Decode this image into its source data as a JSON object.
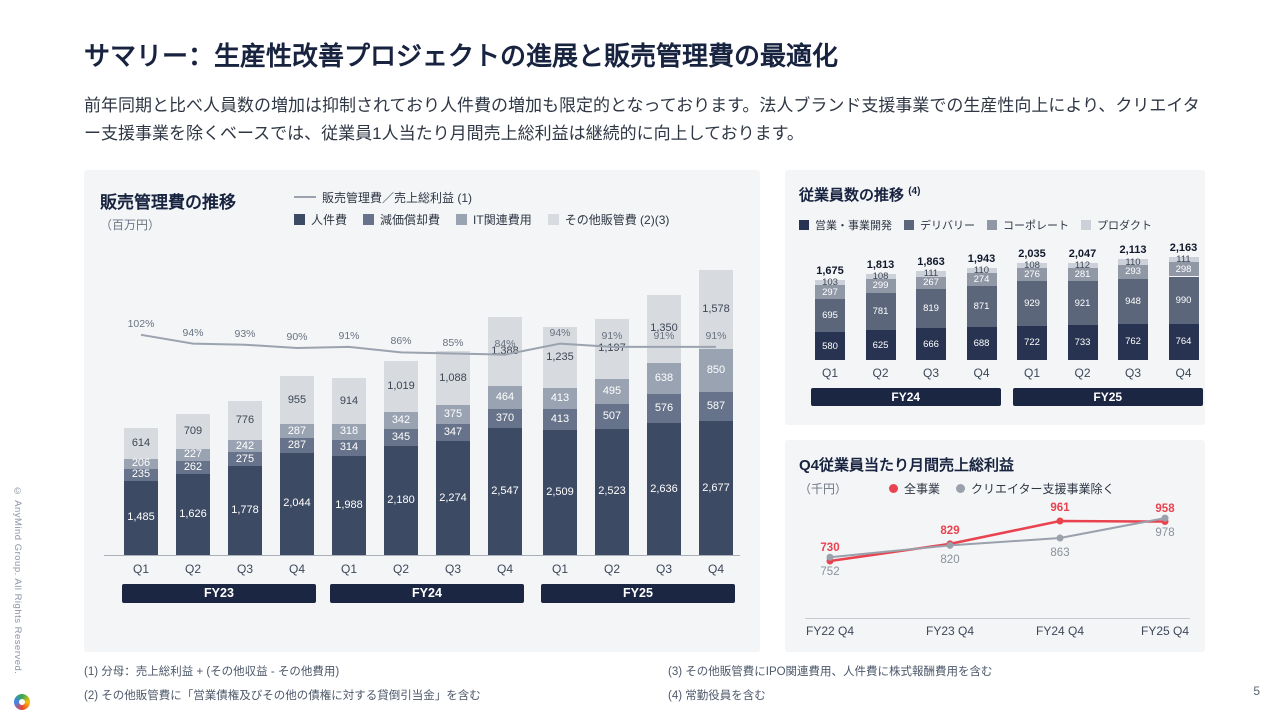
{
  "page": {
    "title": "サマリー：生産性改善プロジェクトの進展と販売管理費の最適化",
    "body": "前年同期と比べ人員数の増加は抑制されており人件費の増加も限定的となっております。法人ブランド支援事業での生産性向上により、クリエイター支援事業を除くベースでは、従業員1人当たり月間売上総利益は継続的に向上しております。",
    "copyright": "© AnyMind Group. All Rights Reserved.",
    "page_number": "5"
  },
  "footnotes": [
    "(1) 分母：売上総利益 + (その他収益 - その他費用)",
    "(2) その他販管費に「営業債権及びその他の債権に対する貸倒引当金」を含む",
    "(3) その他販管費にIPO関連費用、人件費に株式報酬費用を含む",
    "(4) 常勤役員を含む"
  ],
  "colors": {
    "navy": "#1b2642",
    "panel_bg": "#f3f5f7",
    "accent_red": "#e8434e",
    "line_gray": "#9aa3ae"
  },
  "chart_data": [
    {
      "id": "sga_expenses",
      "type": "bar",
      "title": "販売管理費の推移",
      "unit": "（百万円）",
      "categories": [
        "Q1",
        "Q2",
        "Q3",
        "Q4",
        "Q1",
        "Q2",
        "Q3",
        "Q4",
        "Q1",
        "Q2",
        "Q3",
        "Q4"
      ],
      "groups": [
        "FY23",
        "FY24",
        "FY25"
      ],
      "stack_series": [
        {
          "name": "人件費",
          "color": "#3d4a63",
          "values": [
            1485,
            1626,
            1778,
            2044,
            1988,
            2180,
            2274,
            2547,
            2509,
            2523,
            2636,
            2677
          ]
        },
        {
          "name": "減価償却費",
          "color": "#67738a",
          "values": [
            235,
            262,
            275,
            287,
            314,
            345,
            347,
            370,
            413,
            507,
            576,
            587
          ]
        },
        {
          "name": "IT関連費用",
          "color": "#9aa3b2",
          "values": [
            206,
            227,
            242,
            287,
            318,
            342,
            375,
            464,
            413,
            495,
            638,
            850
          ]
        },
        {
          "name": "その他販管費 (2)(3)",
          "color": "#d7dbe0",
          "values": [
            614,
            709,
            776,
            955,
            914,
            1019,
            1088,
            1388,
            1235,
            1197,
            1350,
            1578
          ]
        }
      ],
      "line": {
        "name": "販売管理費／売上総利益 (1)",
        "unit": "%",
        "color": "#9aa3ae",
        "values": [
          102,
          94,
          93,
          90,
          91,
          86,
          85,
          84,
          94,
          91,
          91,
          91
        ]
      }
    },
    {
      "id": "employees",
      "type": "bar",
      "title": "従業員数の推移",
      "title_note": "(4)",
      "categories": [
        "Q1",
        "Q2",
        "Q3",
        "Q4",
        "Q1",
        "Q2",
        "Q3",
        "Q4"
      ],
      "groups": [
        "FY24",
        "FY25"
      ],
      "totals": [
        1675,
        1813,
        1863,
        1943,
        2035,
        2047,
        2113,
        2163
      ],
      "stack_series": [
        {
          "name": "営業・事業開発",
          "color": "#273350",
          "values": [
            580,
            625,
            666,
            688,
            722,
            733,
            762,
            764
          ]
        },
        {
          "name": "デリバリー",
          "color": "#5b667b",
          "values": [
            695,
            781,
            819,
            871,
            929,
            921,
            948,
            990
          ]
        },
        {
          "name": "コーポレート",
          "color": "#9098a6",
          "values": [
            297,
            299,
            267,
            274,
            276,
            281,
            293,
            298
          ]
        },
        {
          "name": "プロダクト",
          "color": "#ccd1d9",
          "values": [
            103,
            108,
            111,
            110,
            108,
            112,
            110,
            111
          ]
        }
      ]
    },
    {
      "id": "gross_profit_per_employee_q4",
      "type": "line",
      "title": "Q4従業員当たり月間売上総利益",
      "unit": "（千円）",
      "categories": [
        "FY22 Q4",
        "FY23 Q4",
        "FY24 Q4",
        "FY25 Q4"
      ],
      "series": [
        {
          "name": "全事業",
          "color": "#e8434e",
          "values": [
            730,
            829,
            961,
            958
          ]
        },
        {
          "name": "クリエイター支援事業除く",
          "color": "#9aa1ab",
          "values": [
            752,
            820,
            863,
            978
          ]
        }
      ]
    }
  ]
}
